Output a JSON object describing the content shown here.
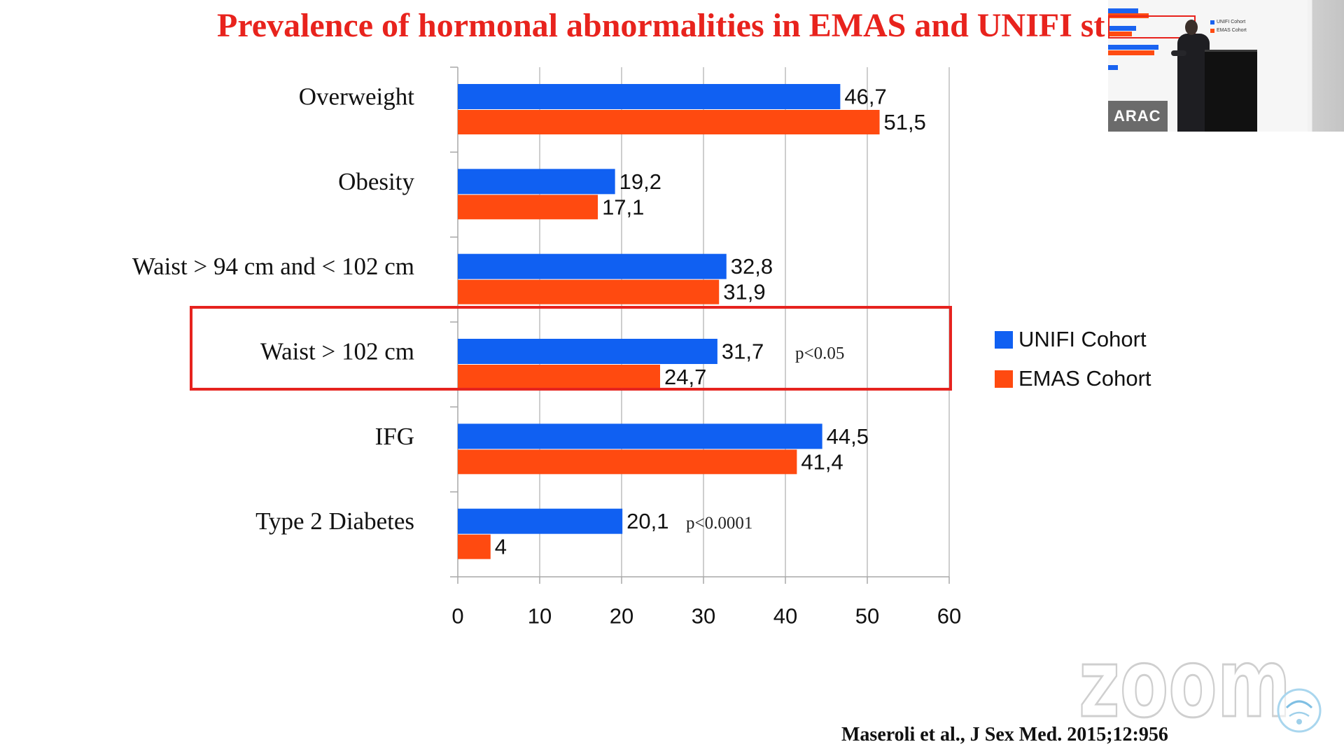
{
  "chart_data": {
    "type": "bar",
    "orientation": "horizontal",
    "title": "Prevalence of hormonal abnormalities in EMAS and UNIFI st",
    "categories": [
      "Overweight",
      "Obesity",
      "Waist > 94 cm and < 102 cm",
      "Waist > 102 cm",
      "IFG",
      "Type 2 Diabetes"
    ],
    "series": [
      {
        "name": "UNIFI Cohort",
        "color": "#1060f2",
        "values": [
          46.7,
          19.2,
          32.8,
          31.7,
          44.5,
          20.1
        ],
        "labels": [
          "46,7",
          "19,2",
          "32,8",
          "31,7",
          "44,5",
          "20,1"
        ]
      },
      {
        "name": "EMAS Cohort",
        "color": "#ff4a10",
        "values": [
          51.5,
          17.1,
          31.9,
          24.7,
          41.4,
          4
        ],
        "labels": [
          "51,5",
          "17,1",
          "31,9",
          "24,7",
          "41,4",
          "4"
        ]
      }
    ],
    "xlim": [
      0,
      60
    ],
    "xticks": [
      0,
      10,
      20,
      30,
      40,
      50,
      60
    ],
    "grid": true,
    "legend": "right",
    "annotations": [
      {
        "category": "Waist > 102 cm",
        "text": "p<0.05"
      },
      {
        "category": "Type 2 Diabetes",
        "text": "p<0.0001"
      }
    ],
    "highlight": {
      "category": "Waist > 102 cm",
      "color": "#e6231f"
    }
  },
  "slide": {
    "citation": "Maseroli et al., J Sex Med. 2015;12:956"
  },
  "colors": {
    "title": "#e8231d"
  },
  "video_thumbnail": {
    "participant_label": "ARAC"
  },
  "overlay": {
    "watermark": "zoom",
    "emblem_icon": "society-emblem-icon"
  }
}
